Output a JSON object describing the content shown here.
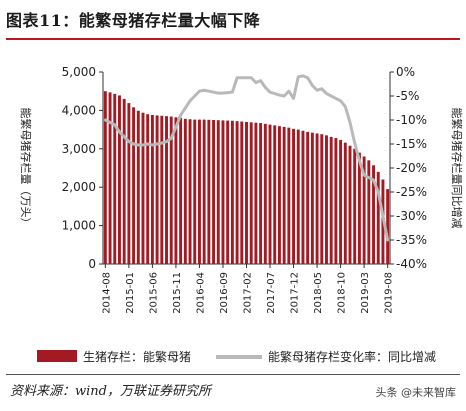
{
  "figure": {
    "title": "图表11：能繁母猪存栏量大幅下降",
    "source": "资料来源：wind，万联证券研究所",
    "watermark": "头条 @未来智库"
  },
  "chart_data": {
    "type": "bar+line",
    "left_axis_title": "能繁母猪存栏量（万头）",
    "right_axis_title": "能繁母猪存栏量同比增减",
    "left_ticks": [
      "0",
      "1,000",
      "2,000",
      "3,000",
      "4,000",
      "5,000"
    ],
    "right_ticks": [
      "-40%",
      "-35%",
      "-30%",
      "-25%",
      "-20%",
      "-15%",
      "-10%",
      "-5%",
      "0%"
    ],
    "ylim_left": [
      0,
      5000
    ],
    "ylim_right": [
      -40,
      0
    ],
    "x_tick_labels": [
      "2014-08",
      "2015-01",
      "2015-06",
      "2015-11",
      "2016-04",
      "2016-09",
      "2017-02",
      "2017-07",
      "2017-12",
      "2018-05",
      "2018-10",
      "2019-03",
      "2019-08"
    ],
    "x_months": [
      "2014-08",
      "2014-09",
      "2014-10",
      "2014-11",
      "2014-12",
      "2015-01",
      "2015-02",
      "2015-03",
      "2015-04",
      "2015-05",
      "2015-06",
      "2015-07",
      "2015-08",
      "2015-09",
      "2015-10",
      "2015-11",
      "2015-12",
      "2016-01",
      "2016-02",
      "2016-03",
      "2016-04",
      "2016-05",
      "2016-06",
      "2016-07",
      "2016-08",
      "2016-09",
      "2016-10",
      "2016-11",
      "2016-12",
      "2017-01",
      "2017-02",
      "2017-03",
      "2017-04",
      "2017-05",
      "2017-06",
      "2017-07",
      "2017-08",
      "2017-09",
      "2017-10",
      "2017-11",
      "2017-12",
      "2018-01",
      "2018-02",
      "2018-03",
      "2018-04",
      "2018-05",
      "2018-06",
      "2018-07",
      "2018-08",
      "2018-09",
      "2018-10",
      "2018-11",
      "2018-12",
      "2019-01",
      "2019-02",
      "2019-03",
      "2019-04",
      "2019-05",
      "2019-06",
      "2019-07",
      "2019-08"
    ],
    "series": [
      {
        "name": "生猪存栏：能繁母猪",
        "type": "bar",
        "axis": "left",
        "color": "#a31a22",
        "values": [
          4500,
          4470,
          4430,
          4390,
          4300,
          4190,
          4080,
          3990,
          3940,
          3900,
          3880,
          3870,
          3860,
          3850,
          3840,
          3820,
          3800,
          3780,
          3770,
          3760,
          3760,
          3760,
          3755,
          3750,
          3745,
          3740,
          3735,
          3730,
          3720,
          3710,
          3700,
          3690,
          3680,
          3670,
          3650,
          3630,
          3610,
          3590,
          3570,
          3550,
          3520,
          3500,
          3470,
          3440,
          3420,
          3400,
          3380,
          3350,
          3310,
          3280,
          3230,
          3160,
          3080,
          3000,
          2900,
          2800,
          2700,
          2570,
          2400,
          2200,
          1950
        ]
      },
      {
        "name": "能繁母猪存栏变化率：同比增减",
        "type": "line",
        "axis": "right",
        "color": "#b9b9b9",
        "values": [
          -10,
          -10.5,
          -11,
          -12.5,
          -13.5,
          -14.5,
          -15,
          -15.2,
          -15.2,
          -15,
          -15.2,
          -15,
          -14.8,
          -14.5,
          -13.8,
          -11.5,
          -9,
          -7.5,
          -6,
          -5,
          -4,
          -3.8,
          -4,
          -4.2,
          -4.4,
          -4.4,
          -4.3,
          -4.2,
          -1.2,
          -1.2,
          -1.2,
          -1.2,
          -2.2,
          -1.8,
          -3.2,
          -4.2,
          -4.5,
          -4.8,
          -5,
          -4,
          -5.5,
          -1,
          -0.8,
          -1.2,
          -2.8,
          -3.8,
          -3.5,
          -4.5,
          -5,
          -5.5,
          -6,
          -7.2,
          -10.5,
          -14.8,
          -18.5,
          -21.5,
          -22,
          -22.5,
          -25,
          -30,
          -35
        ]
      }
    ],
    "legend_position": "bottom",
    "grid": false
  }
}
